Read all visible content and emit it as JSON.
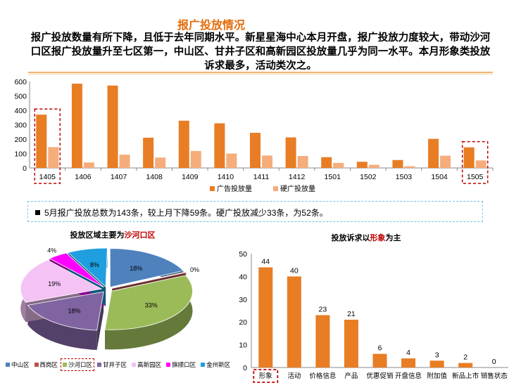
{
  "title": "报广投放情况",
  "summary": "报广投放数量有所下降，且低于去年同期水平。新星星海中心本月开盘，报广投放力度较大，带动沙河口区报广投放量升至七区第一，中山区、甘井子区和高新园区投放量几乎为同一水平。本月形象类投放诉求最多，活动类次之。",
  "note": "5月报广投放总数为143条，较上月下降59条。硬广投放减少33条，为52条。",
  "colors": {
    "ad": "#e87d24",
    "hard": "#f5ad7c",
    "highlight_box": "#c00000",
    "note_border": "#6ec6ea"
  },
  "chart_data": [
    {
      "type": "bar",
      "categories": [
        "1405",
        "1406",
        "1407",
        "1408",
        "1409",
        "1410",
        "1411",
        "1412",
        "1501",
        "1502",
        "1503",
        "1504",
        "1505"
      ],
      "series": [
        {
          "name": "广告投放量",
          "values": [
            370,
            585,
            572,
            210,
            328,
            310,
            244,
            212,
            75,
            43,
            55,
            202,
            143
          ]
        },
        {
          "name": "硬广投放量",
          "values": [
            145,
            38,
            92,
            72,
            118,
            100,
            86,
            83,
            35,
            22,
            12,
            85,
            52
          ]
        }
      ],
      "ylim": [
        0,
        600
      ],
      "yticks": [
        0,
        100,
        200,
        300,
        400,
        500,
        600
      ],
      "highlighted_categories": [
        "1405",
        "1505"
      ],
      "legend_position": "bottom"
    },
    {
      "type": "pie",
      "title_prefix": "投放区域主要为",
      "title_highlight": "沙河口区",
      "labels": [
        "中山区",
        "西岗区",
        "沙河口区",
        "甘井子区",
        "高新园区",
        "旗顺口区",
        "金州新区"
      ],
      "values": [
        18,
        0,
        33,
        18,
        19,
        4,
        8
      ],
      "value_labels": [
        "18%",
        "0%",
        "33%",
        "18%",
        "19%",
        "4%",
        "8%"
      ],
      "colors": [
        "#4f81bd",
        "#c0504d",
        "#9bbb59",
        "#8064a2",
        "#f4c2f4",
        "#ff00ff",
        "#1f9fe0"
      ],
      "highlighted_label": "沙河口区",
      "legend_position": "bottom"
    },
    {
      "type": "bar",
      "title_prefix": "投放诉求以",
      "title_highlight": "形象",
      "title_suffix": "为主",
      "categories": [
        "形象",
        "活动",
        "价格信息",
        "产品",
        "优惠促销",
        "开盘信息",
        "附加值",
        "新品上市",
        "销售状态"
      ],
      "values": [
        44,
        40,
        23,
        21,
        6,
        4,
        3,
        2,
        0
      ],
      "ylim": [
        0,
        50
      ],
      "yticks": [
        0,
        10,
        20,
        30,
        40,
        50
      ],
      "highlighted_categories": [
        "形象"
      ]
    }
  ]
}
